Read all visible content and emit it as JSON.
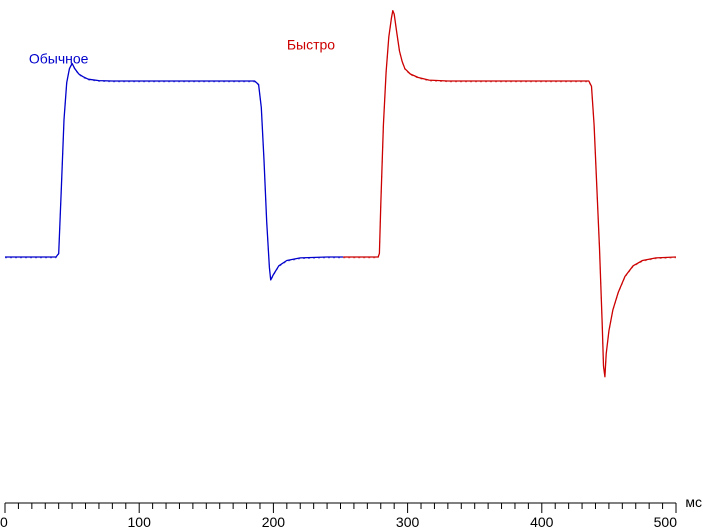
{
  "chart_data": {
    "type": "line",
    "title": "",
    "xlabel": "",
    "ylabel": "",
    "x_unit": "мс",
    "xlim": [
      0,
      500
    ],
    "ylim": [
      -0.75,
      1.4
    ],
    "x_ticks": [
      0,
      100,
      200,
      300,
      400,
      500
    ],
    "x_minor_step": 10,
    "grid": false,
    "y_axis_visible": false,
    "series": [
      {
        "name": "Обычное",
        "color": "#0000cc",
        "label_at": [
          40,
          1.1
        ],
        "points": [
          [
            0,
            0.0
          ],
          [
            38,
            0.0
          ],
          [
            40,
            0.02
          ],
          [
            42,
            0.4
          ],
          [
            44,
            0.78
          ],
          [
            46,
            0.99
          ],
          [
            48,
            1.07
          ],
          [
            50,
            1.1
          ],
          [
            52,
            1.07
          ],
          [
            55,
            1.04
          ],
          [
            58,
            1.025
          ],
          [
            62,
            1.01
          ],
          [
            70,
            1.002
          ],
          [
            80,
            1.0
          ],
          [
            120,
            1.0
          ],
          [
            170,
            1.0
          ],
          [
            186,
            1.0
          ],
          [
            189,
            0.98
          ],
          [
            191,
            0.85
          ],
          [
            193,
            0.55
          ],
          [
            195,
            0.2
          ],
          [
            197,
            -0.06
          ],
          [
            198,
            -0.13
          ],
          [
            200,
            -0.1
          ],
          [
            204,
            -0.05
          ],
          [
            210,
            -0.02
          ],
          [
            220,
            -0.005
          ],
          [
            240,
            0.0
          ],
          [
            252,
            0.0
          ]
        ]
      },
      {
        "name": "Быстро",
        "color": "#cc0000",
        "label_at": [
          228,
          1.18
        ],
        "points": [
          [
            252,
            0.0
          ],
          [
            278,
            0.0
          ],
          [
            279,
            0.02
          ],
          [
            280,
            0.3
          ],
          [
            282,
            0.75
          ],
          [
            284,
            1.05
          ],
          [
            286,
            1.25
          ],
          [
            288,
            1.36
          ],
          [
            289,
            1.4
          ],
          [
            290,
            1.38
          ],
          [
            292,
            1.27
          ],
          [
            294,
            1.17
          ],
          [
            296,
            1.11
          ],
          [
            298,
            1.07
          ],
          [
            302,
            1.04
          ],
          [
            308,
            1.02
          ],
          [
            316,
            1.005
          ],
          [
            330,
            1.0
          ],
          [
            380,
            1.0
          ],
          [
            435,
            1.0
          ],
          [
            437,
            0.97
          ],
          [
            439,
            0.75
          ],
          [
            441,
            0.4
          ],
          [
            443,
            0.05
          ],
          [
            445,
            -0.38
          ],
          [
            446,
            -0.62
          ],
          [
            447,
            -0.68
          ],
          [
            448,
            -0.55
          ],
          [
            450,
            -0.42
          ],
          [
            453,
            -0.3
          ],
          [
            457,
            -0.2
          ],
          [
            462,
            -0.11
          ],
          [
            468,
            -0.05
          ],
          [
            475,
            -0.02
          ],
          [
            485,
            -0.005
          ],
          [
            500,
            0.0
          ]
        ]
      }
    ]
  }
}
